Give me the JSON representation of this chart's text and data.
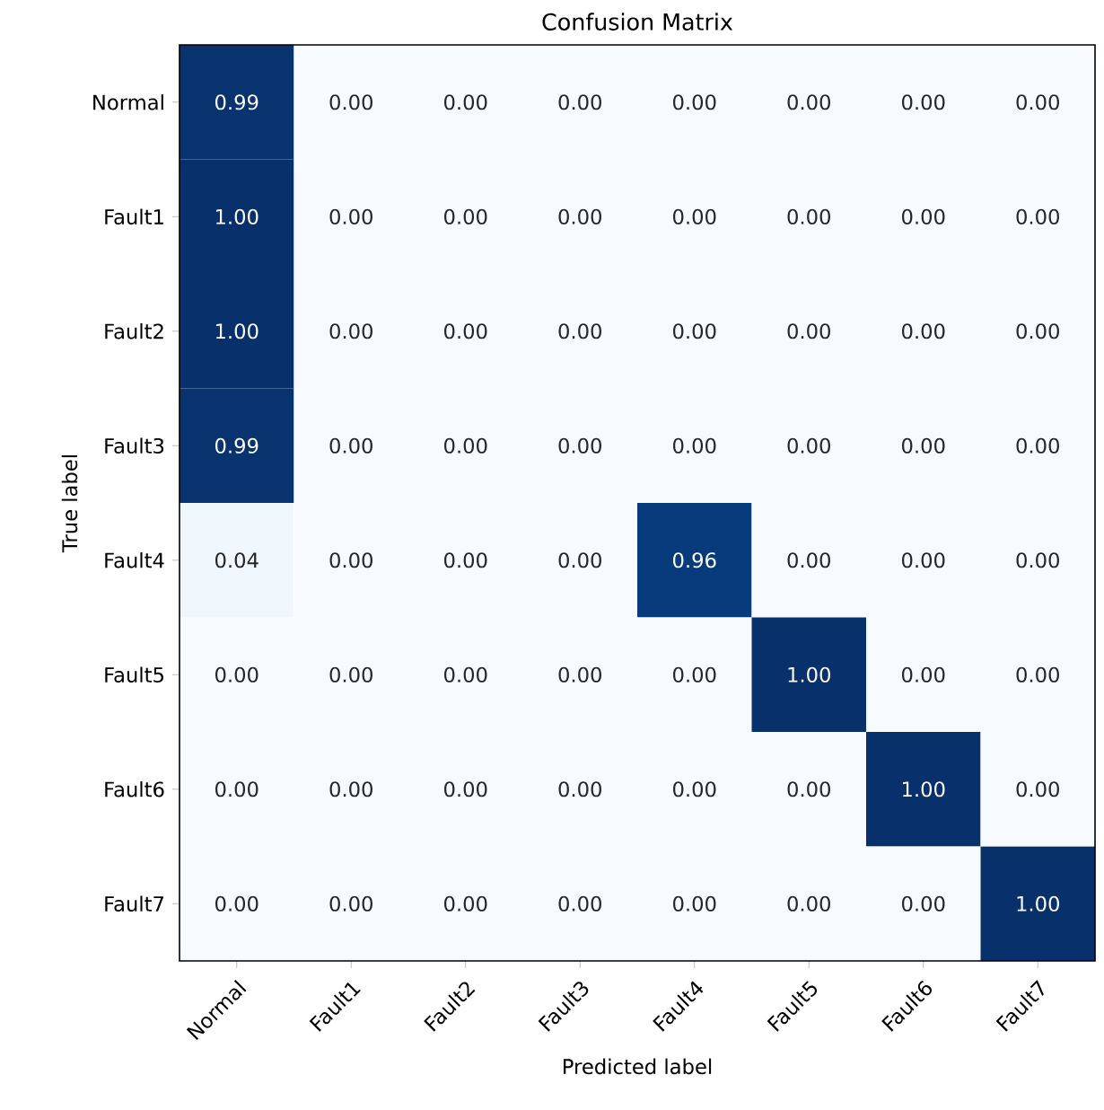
{
  "chart_data": {
    "type": "heatmap",
    "title": "Confusion Matrix",
    "xlabel": "Predicted label",
    "ylabel": "True label",
    "categories": [
      "Normal",
      "Fault1",
      "Fault2",
      "Fault3",
      "Fault4",
      "Fault5",
      "Fault6",
      "Fault7"
    ],
    "y_categories": [
      "Normal",
      "Fault1",
      "Fault2",
      "Fault3",
      "Fault4",
      "Fault5",
      "Fault6",
      "Fault7"
    ],
    "cells": [
      [
        0.99,
        0,
        0,
        0,
        0,
        0,
        0,
        0
      ],
      [
        1.0,
        0,
        0,
        0,
        0,
        0,
        0,
        0
      ],
      [
        1.0,
        0,
        0,
        0,
        0,
        0,
        0,
        0
      ],
      [
        0.99,
        0,
        0,
        0,
        0,
        0,
        0,
        0
      ],
      [
        0.04,
        0,
        0,
        0,
        0.96,
        0,
        0,
        0
      ],
      [
        0,
        0,
        0,
        0,
        0,
        1.0,
        0,
        0
      ],
      [
        0,
        0,
        0,
        0,
        0,
        0,
        1.0,
        0
      ],
      [
        0,
        0,
        0,
        0,
        0,
        0,
        0,
        1.0
      ]
    ],
    "cell_labels": [
      [
        "0.99",
        "0.00",
        "0.00",
        "0.00",
        "0.00",
        "0.00",
        "0.00",
        "0.00"
      ],
      [
        "1.00",
        "0.00",
        "0.00",
        "0.00",
        "0.00",
        "0.00",
        "0.00",
        "0.00"
      ],
      [
        "1.00",
        "0.00",
        "0.00",
        "0.00",
        "0.00",
        "0.00",
        "0.00",
        "0.00"
      ],
      [
        "0.99",
        "0.00",
        "0.00",
        "0.00",
        "0.00",
        "0.00",
        "0.00",
        "0.00"
      ],
      [
        "0.04",
        "0.00",
        "0.00",
        "0.00",
        "0.96",
        "0.00",
        "0.00",
        "0.00"
      ],
      [
        "0.00",
        "0.00",
        "0.00",
        "0.00",
        "0.00",
        "1.00",
        "0.00",
        "0.00"
      ],
      [
        "0.00",
        "0.00",
        "0.00",
        "0.00",
        "0.00",
        "0.00",
        "1.00",
        "0.00"
      ],
      [
        "0.00",
        "0.00",
        "0.00",
        "0.00",
        "0.00",
        "0.00",
        "0.00",
        "1.00"
      ]
    ]
  }
}
